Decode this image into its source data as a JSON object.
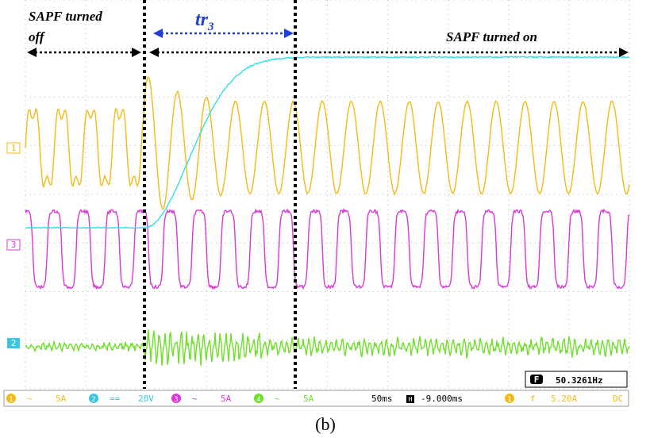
{
  "annotations": {
    "off_label": [
      "SAPF turned",
      "off"
    ],
    "on_label": "SAPF turned on",
    "transition": {
      "main": "tr",
      "sub": "3"
    }
  },
  "channel_markers": [
    "1",
    "3",
    "2"
  ],
  "status_bar": {
    "channels": [
      {
        "number": "1",
        "coupling": "~",
        "scale": "5A"
      },
      {
        "number": "2",
        "coupling": "==",
        "scale": "20V"
      },
      {
        "number": "3",
        "coupling": "~",
        "scale": "5A"
      },
      {
        "number": "4",
        "coupling": "~",
        "scale": "5A"
      }
    ],
    "timebase": "50ms",
    "delay_icon": "H",
    "delay": "-9.000ms",
    "trigger": {
      "channel": "1",
      "slope": "f",
      "level": "5.20A",
      "coupling": "DC"
    }
  },
  "frequency": {
    "icon": "F",
    "value": "50.3261Hz"
  },
  "caption": "(b)"
}
